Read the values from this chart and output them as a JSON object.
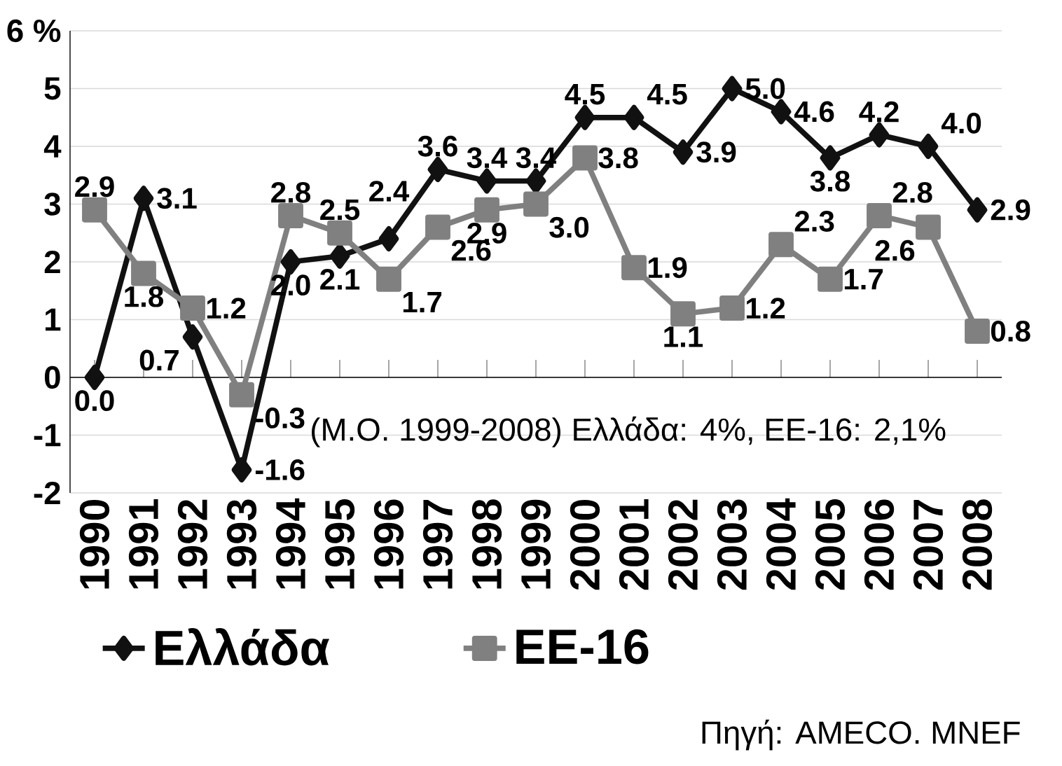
{
  "chart_data": {
    "type": "line",
    "categories": [
      "1990",
      "1991",
      "1992",
      "1993",
      "1994",
      "1995",
      "1996",
      "1997",
      "1998",
      "1999",
      "2000",
      "2001",
      "2002",
      "2003",
      "2004",
      "2005",
      "2006",
      "2007",
      "2008"
    ],
    "series": [
      {
        "name": "Ελλάδα",
        "color": "#111111",
        "marker": "diamond",
        "values": [
          0.0,
          3.1,
          0.7,
          -1.6,
          2.0,
          2.1,
          2.4,
          3.6,
          3.4,
          3.4,
          4.5,
          4.5,
          3.9,
          5.0,
          4.6,
          3.8,
          4.2,
          4.0,
          2.9
        ],
        "value_labels": [
          "0.0",
          "3.1",
          "0.7",
          "-1.6",
          "2.0",
          "2.1",
          "2.4",
          "3.6",
          "3.4",
          "3.4",
          "4.5",
          "4.5",
          "3.9",
          "5.0",
          "4.6",
          "3.8",
          "4.2",
          "4.0",
          "2.9"
        ]
      },
      {
        "name": "ΕΕ-16",
        "color": "#808080",
        "marker": "square",
        "values": [
          2.9,
          1.8,
          1.2,
          -0.3,
          2.8,
          2.5,
          1.7,
          2.6,
          2.9,
          3.0,
          3.8,
          1.9,
          1.1,
          1.2,
          2.3,
          1.7,
          2.8,
          2.6,
          0.8
        ],
        "value_labels": [
          "2.9",
          "1.8",
          "1.2",
          "-0.3",
          "2.8",
          "2.5",
          "1.7",
          "2.6",
          "2.9",
          "3.0",
          "3.8",
          "1.9",
          "1.1",
          "1.2",
          "2.3",
          "1.7",
          "2.8",
          "2.6",
          "0.8"
        ]
      }
    ],
    "ylim": [
      -2,
      6
    ],
    "yticks": [
      -2,
      -1,
      0,
      1,
      2,
      3,
      4,
      5,
      {
        "value": 6,
        "label": "6 %"
      }
    ],
    "grid": "y",
    "legend": "bottom",
    "line_style": "solid",
    "annotations": [
      "(Μ.Ο. 1999-2008) Ελλάδα: 4%, ΕΕ-16: 2,1%",
      "Πηγή: AMECO. MNEF"
    ]
  }
}
